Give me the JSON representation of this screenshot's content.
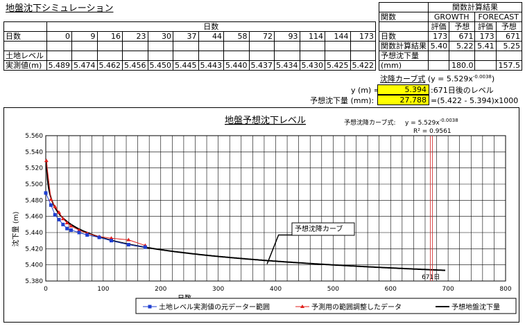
{
  "sheet": {
    "title": "地盤沈下シミュレーション",
    "table_header": "日数",
    "row_days_label": "日数",
    "row_level_label_1": "土地レベル",
    "row_level_label_2": "実測値(m)",
    "days": [
      "0",
      "9",
      "16",
      "23",
      "30",
      "37",
      "44",
      "58",
      "72",
      "93",
      "114",
      "144",
      "173"
    ],
    "levels": [
      "5.489",
      "5.474",
      "5.462",
      "5.456",
      "5.450",
      "5.445",
      "5.443",
      "5.440",
      "5.437",
      "5.434",
      "5.430",
      "5.425",
      "5.422"
    ]
  },
  "results": {
    "title": "関数計算結果",
    "func_label": "関数",
    "growth": "GROWTH",
    "forecast": "FORECAST",
    "eval": "評価",
    "pred": "予想",
    "days_label": "日数",
    "calc_label": "関数計算結果",
    "settle_label_1": "予想沈下量",
    "settle_label_2": "(mm)",
    "days_vals": [
      "173",
      "671",
      "173",
      "671"
    ],
    "calc_vals": [
      "5.40",
      "5.22",
      "5.41",
      "5.25"
    ],
    "settle_vals": [
      "",
      "180.0",
      "",
      "157.5"
    ]
  },
  "formula": {
    "curve_label": "沈降カーブ式",
    "curve_eq": "(y = 5.529x",
    "curve_exp": "-0.0038",
    "curve_close": ")",
    "y_label": "y (m) =",
    "y_value": "5.394",
    "y_note": ":671日後のレベル",
    "settle_label": "予想沈下量 (mm):",
    "settle_value": "27.788",
    "settle_note": "=(5.422 - 5.394)x1000"
  },
  "colors": {
    "series1": "#1f3fd1",
    "series2": "#e0201c",
    "series3": "#000000",
    "highlight": "#ffff00",
    "marker_line": "#d02020"
  },
  "chart_data": {
    "type": "scatter",
    "title": "地盤予想沈下レベル",
    "eq_label": "予想沈降カーブ式:",
    "eq_text": "y = 5.529x",
    "eq_exp": "-0.0038",
    "r2_text": "R² = 0.9561",
    "ylabel": "沈下量 (m)",
    "xlabel": "日数",
    "xlim": [
      0,
      800
    ],
    "ylim": [
      5.38,
      5.56
    ],
    "xticks": [
      "0",
      "100",
      "200",
      "300",
      "400",
      "500",
      "600",
      "700",
      "800"
    ],
    "yticks": [
      "5.380",
      "5.400",
      "5.420",
      "5.440",
      "5.460",
      "5.480",
      "5.500",
      "5.520",
      "5.540",
      "5.560"
    ],
    "vline_x": 671,
    "vline_label": "671日",
    "annotation": "予想沈降カーブ",
    "grid": true,
    "legend_position": "bottom",
    "series": [
      {
        "name": "土地レベル実測値の元データー範囲",
        "marker": "square",
        "x": [
          0,
          9,
          16,
          23,
          30,
          37,
          44,
          58,
          72,
          93,
          114,
          144,
          173
        ],
        "y": [
          5.489,
          5.474,
          5.462,
          5.456,
          5.45,
          5.445,
          5.443,
          5.44,
          5.437,
          5.434,
          5.43,
          5.425,
          5.422
        ]
      },
      {
        "name": "予測用の範囲調整したデータ",
        "marker": "triangle",
        "x": [
          1,
          9,
          16,
          23,
          30,
          37,
          44,
          58,
          72,
          93,
          114,
          144,
          173
        ],
        "y": [
          5.529,
          5.481,
          5.472,
          5.465,
          5.457,
          5.452,
          5.448,
          5.443,
          5.439,
          5.435,
          5.433,
          5.431,
          5.424
        ]
      },
      {
        "name": "予想地盤沈下量",
        "marker": "none",
        "formula_a": 5.529,
        "formula_b": -0.0038,
        "x_max": 695
      }
    ]
  }
}
